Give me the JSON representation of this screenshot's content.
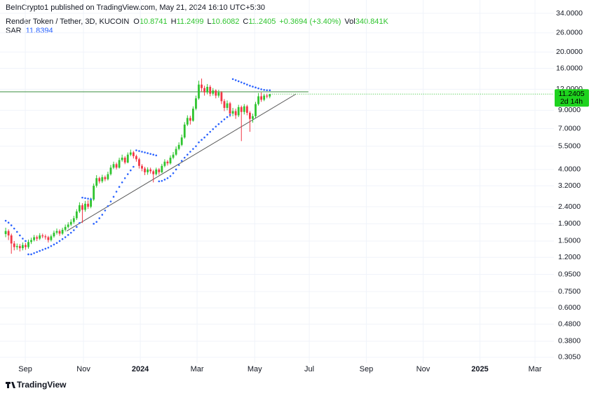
{
  "chart_data": {
    "type": "candlestick",
    "published": "BeInCrypto1 published on TradingView.com, May 21, 2024 16:10 UTC+5:30",
    "ohlc_labels": [
      "O",
      "H",
      "L",
      "C"
    ],
    "change": "+0.3694 (+3.40%)",
    "volume_label": "Vol",
    "volume": "340.841K",
    "countdown": "2d 14h",
    "footer": "TradingView",
    "log_scale": true,
    "grid": true,
    "xlim": [
      -2,
      193.06
    ],
    "ylim": [
      0.282,
      40.8
    ],
    "xticks": [
      {
        "value": 6.9,
        "label": "Sep"
      },
      {
        "value": 27.4,
        "label": "Nov"
      },
      {
        "value": 47.4,
        "label": "2024"
      },
      {
        "value": 67.4,
        "label": "Mar"
      },
      {
        "value": 87.7,
        "label": "May"
      },
      {
        "value": 106.9,
        "label": "Jul"
      },
      {
        "value": 127,
        "label": "Sep"
      },
      {
        "value": 147,
        "label": "Nov"
      },
      {
        "value": 167,
        "label": "2025"
      },
      {
        "value": 186.4,
        "label": "Mar"
      }
    ],
    "yticks": [
      {
        "value": 34,
        "label": "34.0000"
      },
      {
        "value": 26,
        "label": "26.0000"
      },
      {
        "value": 20,
        "label": "20.0000"
      },
      {
        "value": 16,
        "label": "16.0000"
      },
      {
        "value": 12,
        "label": "12.0000"
      },
      {
        "value": 9,
        "label": "9.0000"
      },
      {
        "value": 7,
        "label": "7.0000"
      },
      {
        "value": 5.5,
        "label": "5.5000"
      },
      {
        "value": 4,
        "label": "4.0000"
      },
      {
        "value": 3.2,
        "label": "3.2000"
      },
      {
        "value": 2.4,
        "label": "2.4000"
      },
      {
        "value": 1.9,
        "label": "1.9000"
      },
      {
        "value": 1.5,
        "label": "1.5000"
      },
      {
        "value": 1.2,
        "label": "1.2000"
      },
      {
        "value": 0.95,
        "label": "0.9500"
      },
      {
        "value": 0.75,
        "label": "0.7500"
      },
      {
        "value": 0.6,
        "label": "0.6000"
      },
      {
        "value": 0.48,
        "label": "0.4800"
      },
      {
        "value": 0.38,
        "label": "0.3800"
      },
      {
        "value": 0.305,
        "label": "0.3050"
      }
    ],
    "series": [
      {
        "name": "Render Token / Tether, 3D, KUCOIN",
        "up_color": "#2fc42f",
        "down_color": "#f23645",
        "open": [
          1.65,
          1.72,
          1.62,
          1.45,
          1.38,
          1.4,
          1.36,
          1.42,
          1.38,
          1.48,
          1.52,
          1.58,
          1.55,
          1.62,
          1.6,
          1.58,
          1.52,
          1.6,
          1.68,
          1.72,
          1.66,
          1.75,
          1.82,
          1.88,
          1.95,
          2.05,
          2.25,
          2.45,
          2.3,
          2.5,
          2.4,
          2.65,
          3.2,
          3.55,
          3.4,
          3.6,
          3.5,
          3.75,
          4.1,
          4.3,
          4.1,
          4.55,
          4.7,
          4.4,
          4.9,
          5.05,
          4.8,
          4.6,
          4.2,
          4.05,
          3.85,
          4.0,
          3.9,
          3.75,
          4.0,
          3.85,
          4.2,
          4.45,
          4.35,
          4.7,
          4.9,
          5.3,
          5.6,
          6.2,
          7.4,
          8.1,
          7.8,
          9.2,
          10.6,
          12.8,
          12.2,
          11.5,
          12.4,
          11.3,
          11.8,
          11.0,
          11.5,
          10.2,
          9.3,
          9.9,
          8.6,
          8.9,
          8.4,
          9.4,
          8.8,
          9.5,
          8.7,
          8.0,
          8.3,
          9.8,
          10.9,
          10.4,
          11.0,
          10.8741
        ],
        "high": [
          1.8,
          1.76,
          1.66,
          1.5,
          1.45,
          1.44,
          1.47,
          1.46,
          1.53,
          1.57,
          1.63,
          1.62,
          1.67,
          1.66,
          1.64,
          1.61,
          1.64,
          1.73,
          1.78,
          1.76,
          1.8,
          1.88,
          1.94,
          2.02,
          2.12,
          2.32,
          2.55,
          2.52,
          2.6,
          2.62,
          2.72,
          3.3,
          3.7,
          3.62,
          3.72,
          3.68,
          3.88,
          4.25,
          4.45,
          4.4,
          4.7,
          4.9,
          4.8,
          5.05,
          5.25,
          5.15,
          4.9,
          4.7,
          4.3,
          4.15,
          4.12,
          4.1,
          3.98,
          4.1,
          4.08,
          4.32,
          4.6,
          4.55,
          4.85,
          5.08,
          5.48,
          5.8,
          6.45,
          7.65,
          8.4,
          8.35,
          9.5,
          11.0,
          13.5,
          13.9,
          12.6,
          12.9,
          12.7,
          12.2,
          12.0,
          11.9,
          11.7,
          10.5,
          10.3,
          10.1,
          9.3,
          9.2,
          9.7,
          9.6,
          9.8,
          9.7,
          8.9,
          8.6,
          10.1,
          11.4,
          11.5,
          11.3,
          11.3,
          11.2499
        ],
        "low": [
          1.58,
          1.52,
          1.26,
          1.32,
          1.33,
          1.3,
          1.32,
          1.33,
          1.35,
          1.44,
          1.49,
          1.5,
          1.52,
          1.56,
          1.53,
          1.47,
          1.49,
          1.57,
          1.64,
          1.61,
          1.63,
          1.71,
          1.78,
          1.84,
          1.9,
          2.0,
          2.2,
          1.92,
          2.24,
          2.33,
          2.35,
          2.6,
          3.12,
          3.3,
          3.32,
          3.4,
          3.44,
          3.68,
          4.02,
          4.0,
          4.05,
          4.45,
          4.3,
          4.35,
          4.8,
          4.65,
          4.45,
          4.05,
          3.9,
          3.7,
          3.72,
          3.78,
          3.35,
          3.68,
          3.72,
          3.8,
          4.12,
          4.22,
          4.28,
          4.6,
          4.82,
          5.2,
          5.5,
          6.1,
          7.25,
          7.4,
          7.7,
          9.0,
          10.4,
          11.6,
          11.0,
          11.2,
          10.9,
          11.0,
          10.6,
          10.7,
          9.8,
          8.9,
          9.0,
          8.2,
          8.3,
          8.0,
          8.2,
          5.9,
          8.5,
          8.4,
          6.7,
          7.6,
          8.1,
          9.6,
          10.1,
          10.2,
          10.6,
          10.6082
        ],
        "close": [
          1.72,
          1.62,
          1.45,
          1.38,
          1.4,
          1.36,
          1.42,
          1.38,
          1.48,
          1.52,
          1.58,
          1.55,
          1.62,
          1.6,
          1.58,
          1.52,
          1.6,
          1.68,
          1.72,
          1.66,
          1.75,
          1.82,
          1.88,
          1.95,
          2.05,
          2.25,
          2.45,
          2.3,
          2.5,
          2.4,
          2.65,
          3.2,
          3.55,
          3.4,
          3.6,
          3.5,
          3.75,
          4.1,
          4.3,
          4.1,
          4.55,
          4.7,
          4.4,
          4.9,
          5.05,
          4.8,
          4.6,
          4.2,
          4.05,
          3.85,
          4.0,
          3.9,
          3.75,
          4.0,
          3.85,
          4.2,
          4.45,
          4.35,
          4.7,
          4.9,
          5.3,
          5.6,
          6.2,
          7.4,
          8.1,
          7.8,
          9.2,
          10.6,
          12.8,
          12.2,
          11.5,
          12.4,
          11.3,
          11.8,
          11.0,
          11.5,
          10.2,
          9.3,
          9.9,
          8.6,
          8.9,
          8.4,
          9.4,
          8.8,
          9.5,
          8.7,
          8.0,
          8.3,
          9.8,
          10.9,
          10.4,
          11.0,
          10.87,
          11.2405
        ]
      },
      {
        "name": "SAR",
        "color": "#2962ff",
        "values": [
          1.98,
          1.93,
          1.86,
          1.78,
          1.7,
          1.62,
          1.55,
          1.5,
          1.25,
          1.25,
          1.27,
          1.29,
          1.31,
          1.33,
          1.35,
          1.37,
          1.4,
          1.43,
          1.46,
          1.5,
          1.54,
          1.58,
          1.63,
          1.68,
          1.74,
          1.82,
          1.92,
          2.72,
          2.7,
          2.68,
          2.66,
          1.9,
          1.95,
          2.05,
          2.15,
          2.28,
          2.42,
          2.58,
          2.75,
          2.95,
          3.15,
          3.35,
          3.55,
          3.75,
          3.95,
          4.15,
          5.2,
          5.15,
          5.1,
          5.05,
          5.0,
          4.95,
          4.9,
          4.85,
          3.4,
          3.42,
          3.48,
          3.55,
          3.65,
          3.8,
          4.0,
          4.25,
          4.5,
          4.7,
          4.9,
          5.1,
          5.3,
          5.5,
          5.8,
          6.0,
          6.2,
          6.45,
          6.7,
          6.95,
          7.2,
          7.45,
          7.7,
          7.95,
          8.2,
          8.45,
          13.8,
          13.6,
          13.4,
          13.2,
          13.0,
          12.8,
          12.6,
          12.45,
          12.3,
          12.15,
          12.0,
          11.9,
          11.85,
          11.8394
        ]
      }
    ],
    "trendlines": [
      {
        "color": "#388e3c",
        "x": [
          -2,
          106.6
        ],
        "y": [
          11.6,
          11.6
        ]
      },
      {
        "color": "#555555",
        "x": [
          21.5,
          102.2
        ],
        "y": [
          1.72,
          11.24
        ]
      }
    ]
  }
}
